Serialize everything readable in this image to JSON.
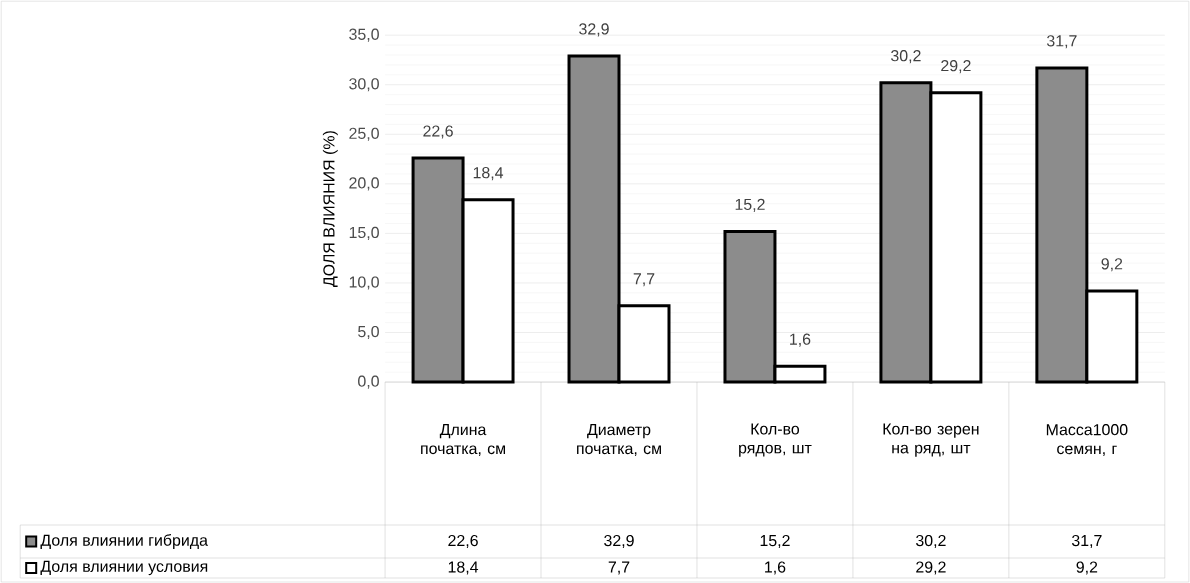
{
  "chart_data": {
    "type": "bar",
    "ylabel": "ДОЛЯ ВЛИЯНИЯ (%)",
    "categories": [
      "Длина початка, см",
      "Диаметр початка, см",
      "Кол-во рядов, шт",
      "Кол-во зерен на ряд, шт",
      "Масса1000 семян, г"
    ],
    "series": [
      {
        "name": "Доля влиянии гибрида",
        "color": "#8c8c8c",
        "values": [
          22.6,
          32.9,
          15.2,
          30.2,
          31.7
        ],
        "value_labels": [
          "22,6",
          "32,9",
          "15,2",
          "30,2",
          "31,7"
        ]
      },
      {
        "name": "Доля влиянии условия",
        "color": "#ffffff",
        "values": [
          18.4,
          7.7,
          1.6,
          29.2,
          9.2
        ],
        "value_labels": [
          "18,4",
          "7,7",
          "1,6",
          "29,2",
          "9,2"
        ]
      }
    ],
    "ylim": [
      0,
      35
    ],
    "yticks": [
      {
        "value": 0,
        "label": "0,0"
      },
      {
        "value": 5,
        "label": "5,0"
      },
      {
        "value": 10,
        "label": "10,0"
      },
      {
        "value": 15,
        "label": "15,0"
      },
      {
        "value": 20,
        "label": "20,0"
      },
      {
        "value": 25,
        "label": "25,0"
      },
      {
        "value": 30,
        "label": "30,0"
      },
      {
        "value": 35,
        "label": "35,0"
      }
    ],
    "grid": "y",
    "legend": "bottom"
  }
}
